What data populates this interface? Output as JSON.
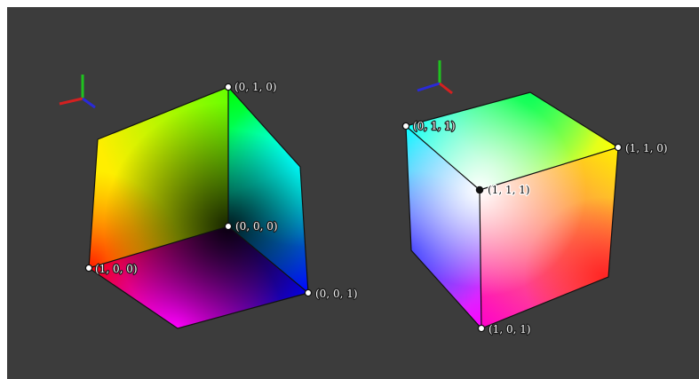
{
  "colors": {
    "background": "#3c3c3c",
    "axis_x": "#d42020",
    "axis_y": "#1fc21f",
    "axis_z": "#2a2ad8",
    "edge": "#111111"
  },
  "left_cube": {
    "labels": {
      "v010": "(0, 1, 0)",
      "v000": "(0, 0, 0)",
      "v100": "(1, 0, 0)",
      "v001": "(0, 0, 1)"
    }
  },
  "right_cube": {
    "labels": {
      "v011": "(0, 1, 1)",
      "v110": "(1, 1, 0)",
      "v111": "(1, 1, 1)",
      "v101": "(1, 0, 1)"
    }
  },
  "icons": {
    "left_axes": "xyz-axes-icon",
    "right_axes": "xyz-axes-icon"
  }
}
